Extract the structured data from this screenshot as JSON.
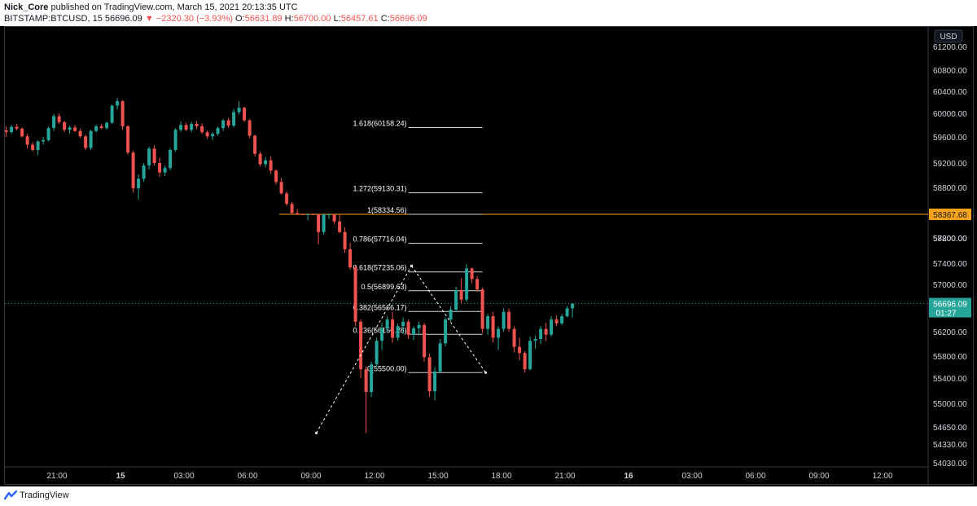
{
  "header": {
    "author": "Nick_Core",
    "published": "published on TradingView.com, March 15, 2021 20:13:35 UTC",
    "symbol": "BITSTAMP:BTCUSD, 15",
    "price": "56696.09",
    "arrow": "▼",
    "change": "−2320.30 (−3.93%)",
    "o_label": "O:",
    "o_value": "56631.89",
    "h_label": "H:",
    "h_value": "56700.00",
    "l_label": "L:",
    "l_value": "56457.61",
    "c_label": "C:",
    "c_value": "56696.09"
  },
  "footer": {
    "brand": "TradingView"
  },
  "colors": {
    "up": "#26a69a",
    "down": "#ef5350",
    "accent": "#f7a21b",
    "price_tag": "#26a69a"
  },
  "chart_data": {
    "type": "candlestick",
    "currency": "USD",
    "y_ticks": [
      "61200.00",
      "60800.00",
      "60400.00",
      "60000.00",
      "59600.00",
      "59200.00",
      "58800.00",
      "58600.00",
      "58200.00",
      "57800.00",
      "57400.00",
      "57000.00",
      "56600.00",
      "56200.00",
      "55800.00",
      "55400.00",
      "55000.00",
      "54650.00",
      "54330.00",
      "54030.00"
    ],
    "y_tick_values": [
      61200,
      60800,
      60400,
      60000,
      59600,
      59200,
      58800,
      58600,
      58200,
      57800,
      57400,
      57000,
      56600,
      56200,
      55800,
      55400,
      55000,
      54650,
      54330,
      54030
    ],
    "x_ticks": [
      "21:00",
      "15",
      "03:00",
      "06:00",
      "09:00",
      "12:00",
      "15:00",
      "18:00",
      "21:00",
      "16",
      "03:00",
      "06:00",
      "09:00",
      "12:00"
    ],
    "x_tick_hours": [
      -3,
      0,
      3,
      6,
      9,
      12,
      15,
      18,
      21,
      24,
      27,
      30,
      33,
      36
    ],
    "bold_ticks": [
      "15",
      "16"
    ],
    "fib_levels": [
      {
        "label": "1.618(60158.24)",
        "value": 60158.24
      },
      {
        "label": "1.272(59130.31)",
        "value": 59130.31
      },
      {
        "label": "1(58334.56)",
        "value": 58334.56
      },
      {
        "label": "0.786(57716.04)",
        "value": 57716.04
      },
      {
        "label": "0.618(57235.06)",
        "value": 57235.06
      },
      {
        "label": "0.5(56899.63)",
        "value": 56899.63
      },
      {
        "label": "0.382(56566.17)",
        "value": 56566.17
      },
      {
        "label": "0.236(56156.28)",
        "value": 56156.28
      },
      {
        "label": "0(55500.00)",
        "value": 55500.0
      }
    ],
    "fib_start_hour": 13.6,
    "fib_end_hour": 17.1,
    "horizontal_line": {
      "value": 58367.68,
      "label": "58367.68",
      "start_hour": 7.5
    },
    "last_price": {
      "value": 56696.09,
      "label": "56696.09",
      "countdown": "01:27"
    },
    "zigzag": [
      {
        "hour": 9.25,
        "price": 54560
      },
      {
        "hour": 13.75,
        "price": 57350
      },
      {
        "hour": 17.25,
        "price": 55500
      }
    ],
    "candles_start_hour": -5.4,
    "candle_interval_hours": 0.25,
    "candles": [
      [
        60110,
        60180,
        60000,
        60080
      ],
      [
        60080,
        60200,
        60050,
        60170
      ],
      [
        60170,
        60220,
        60110,
        60140
      ],
      [
        60140,
        60160,
        59990,
        60010
      ],
      [
        60010,
        60060,
        59820,
        59880
      ],
      [
        59880,
        59920,
        59780,
        59800
      ],
      [
        59800,
        59950,
        59720,
        59930
      ],
      [
        59930,
        60000,
        59880,
        59950
      ],
      [
        59950,
        60180,
        59930,
        60150
      ],
      [
        60150,
        60390,
        60100,
        60350
      ],
      [
        60350,
        60400,
        60220,
        60250
      ],
      [
        60250,
        60270,
        60080,
        60120
      ],
      [
        60120,
        60190,
        60050,
        60160
      ],
      [
        60160,
        60200,
        60080,
        60100
      ],
      [
        60100,
        60140,
        59980,
        60010
      ],
      [
        60010,
        60040,
        59800,
        59830
      ],
      [
        59830,
        60120,
        59800,
        60100
      ],
      [
        60100,
        60210,
        60070,
        60180
      ],
      [
        60180,
        60220,
        60130,
        60150
      ],
      [
        60150,
        60260,
        60120,
        60240
      ],
      [
        60240,
        60560,
        60220,
        60540
      ],
      [
        60540,
        60680,
        60470,
        60620
      ],
      [
        60620,
        60640,
        60120,
        60180
      ],
      [
        60180,
        60200,
        59730,
        59760
      ],
      [
        59760,
        59790,
        59130,
        59200
      ],
      [
        59200,
        59420,
        59020,
        59350
      ],
      [
        59350,
        59600,
        59300,
        59560
      ],
      [
        59560,
        59850,
        59500,
        59820
      ],
      [
        59820,
        59870,
        59560,
        59600
      ],
      [
        59600,
        59680,
        59380,
        59450
      ],
      [
        59450,
        59560,
        59390,
        59520
      ],
      [
        59520,
        59830,
        59480,
        59800
      ],
      [
        59800,
        60150,
        59770,
        60120
      ],
      [
        60120,
        60260,
        60080,
        60200
      ],
      [
        60200,
        60240,
        60100,
        60120
      ],
      [
        60120,
        60260,
        60080,
        60220
      ],
      [
        60220,
        60270,
        60130,
        60180
      ],
      [
        60180,
        60230,
        60050,
        60080
      ],
      [
        60080,
        60110,
        59970,
        60010
      ],
      [
        60010,
        60080,
        59950,
        60050
      ],
      [
        60050,
        60180,
        60020,
        60150
      ],
      [
        60150,
        60300,
        60100,
        60280
      ],
      [
        60280,
        60320,
        60150,
        60190
      ],
      [
        60190,
        60480,
        60160,
        60420
      ],
      [
        60420,
        60620,
        60380,
        60500
      ],
      [
        60500,
        60520,
        60250,
        60280
      ],
      [
        60280,
        60300,
        59980,
        60020
      ],
      [
        60020,
        60040,
        59700,
        59740
      ],
      [
        59740,
        59780,
        59540,
        59580
      ],
      [
        59580,
        59690,
        59530,
        59640
      ],
      [
        59640,
        59700,
        59430,
        59480
      ],
      [
        59480,
        59500,
        59260,
        59300
      ],
      [
        59300,
        59360,
        59100,
        59120
      ],
      [
        59120,
        59150,
        58930,
        58960
      ],
      [
        58960,
        58990,
        58780,
        58820
      ],
      [
        58820,
        58880,
        58600,
        58660
      ],
      [
        58660,
        58700,
        58260,
        58300
      ],
      [
        58300,
        58600,
        58100,
        58520
      ],
      [
        58520,
        58650,
        58300,
        58340
      ],
      [
        58340,
        58380,
        57700,
        57900
      ],
      [
        57900,
        58240,
        57850,
        58200
      ],
      [
        58200,
        58420,
        58120,
        58370
      ],
      [
        58370,
        58400,
        58030,
        58080
      ],
      [
        58080,
        58200,
        57880,
        57900
      ],
      [
        57900,
        57980,
        57560,
        57620
      ],
      [
        57620,
        57720,
        57280,
        57320
      ],
      [
        57320,
        57360,
        56300,
        56380
      ],
      [
        56380,
        56420,
        55400,
        55560
      ],
      [
        55560,
        55620,
        54560,
        55180
      ],
      [
        55180,
        55700,
        55100,
        55650
      ],
      [
        55650,
        56100,
        55600,
        56050
      ],
      [
        56050,
        56360,
        55900,
        56260
      ],
      [
        56260,
        56480,
        56180,
        56420
      ],
      [
        56420,
        56560,
        56020,
        56100
      ],
      [
        56100,
        56350,
        56050,
        56300
      ],
      [
        56300,
        56460,
        56160,
        56380
      ],
      [
        56380,
        56420,
        56080,
        56150
      ],
      [
        56150,
        56300,
        56060,
        56260
      ],
      [
        56260,
        56380,
        56140,
        56320
      ],
      [
        56320,
        56360,
        55700,
        55780
      ],
      [
        55780,
        55840,
        55100,
        55190
      ],
      [
        55190,
        55600,
        55050,
        55520
      ],
      [
        55520,
        56080,
        55480,
        56010
      ],
      [
        56010,
        56460,
        55960,
        56420
      ],
      [
        56420,
        56660,
        56380,
        56600
      ],
      [
        56600,
        56960,
        56560,
        56910
      ],
      [
        56910,
        57120,
        56700,
        56760
      ],
      [
        56760,
        57380,
        56720,
        57300
      ],
      [
        57300,
        57320,
        57020,
        57100
      ],
      [
        57100,
        57160,
        56880,
        56920
      ],
      [
        56920,
        56950,
        56180,
        56250
      ],
      [
        56250,
        56520,
        56150,
        56480
      ],
      [
        56480,
        56560,
        56020,
        56100
      ],
      [
        56100,
        56300,
        55900,
        56250
      ],
      [
        56250,
        56620,
        56200,
        56560
      ],
      [
        56560,
        56620,
        56200,
        56250
      ],
      [
        56250,
        56300,
        55860,
        55950
      ],
      [
        55950,
        56100,
        55720,
        55850
      ],
      [
        55850,
        55880,
        55500,
        55560
      ],
      [
        55560,
        56120,
        55540,
        56050
      ],
      [
        56050,
        56140,
        55920,
        56080
      ],
      [
        56080,
        56300,
        56000,
        56250
      ],
      [
        56250,
        56360,
        56050,
        56150
      ],
      [
        56150,
        56480,
        56120,
        56420
      ],
      [
        56420,
        56500,
        56300,
        56350
      ],
      [
        56350,
        56520,
        56320,
        56480
      ],
      [
        56480,
        56660,
        56460,
        56620
      ],
      [
        56620,
        56700,
        56457,
        56696
      ]
    ]
  }
}
